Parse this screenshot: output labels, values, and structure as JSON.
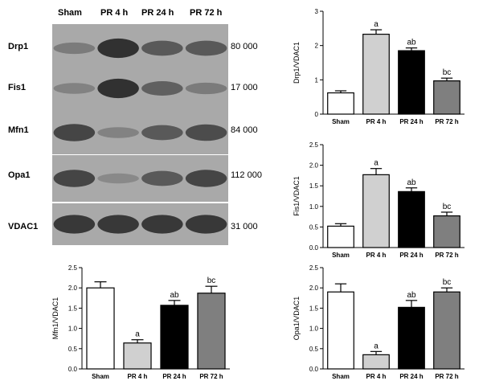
{
  "blot": {
    "lanes": [
      "Sham",
      "PR 4 h",
      "PR 24 h",
      "PR 72 h"
    ],
    "bands": [
      {
        "name": "Drp1",
        "mw": "80 000",
        "intensity": [
          0.35,
          0.9,
          0.6,
          0.6
        ]
      },
      {
        "name": "Fis1",
        "mw": "17 000",
        "intensity": [
          0.3,
          0.9,
          0.55,
          0.35
        ]
      },
      {
        "name": "Mfn1",
        "mw": "84 000",
        "intensity": [
          0.75,
          0.3,
          0.6,
          0.7
        ]
      },
      {
        "name": "Opa1",
        "mw": "112 000",
        "intensity": [
          0.75,
          0.25,
          0.6,
          0.75
        ]
      },
      {
        "name": "VDAC1",
        "mw": "31 000",
        "intensity": [
          0.85,
          0.85,
          0.85,
          0.85
        ]
      }
    ]
  },
  "chart_data": [
    {
      "id": "drp1",
      "type": "bar",
      "ylabel": "Drp1/VDAC1",
      "categories": [
        "Sham",
        "PR 4 h",
        "PR 24 h",
        "PR 72 h"
      ],
      "values": [
        0.62,
        2.33,
        1.85,
        0.97
      ],
      "errors": [
        0.06,
        0.13,
        0.08,
        0.08
      ],
      "annotations": [
        "",
        "a",
        "ab",
        "bc"
      ],
      "ylim": [
        0,
        3
      ],
      "yticks": [
        0,
        1,
        2,
        3
      ],
      "bar_colors": [
        "#ffffff",
        "#d0d0d0",
        "#000000",
        "#7f7f7f"
      ]
    },
    {
      "id": "fis1",
      "type": "bar",
      "ylabel": "Fis1/VDAC1",
      "categories": [
        "Sham",
        "PR 4 h",
        "PR 24 h",
        "PR 72 h"
      ],
      "values": [
        0.52,
        1.77,
        1.36,
        0.77
      ],
      "errors": [
        0.06,
        0.15,
        0.09,
        0.09
      ],
      "annotations": [
        "",
        "a",
        "ab",
        "bc"
      ],
      "ylim": [
        0,
        2.5
      ],
      "yticks": [
        0,
        0.5,
        1.0,
        1.5,
        2.0,
        2.5
      ],
      "bar_colors": [
        "#ffffff",
        "#d0d0d0",
        "#000000",
        "#7f7f7f"
      ]
    },
    {
      "id": "mfn1",
      "type": "bar",
      "ylabel": "Mfn1/VDAC1",
      "categories": [
        "Sham",
        "PR 4 h",
        "PR 24 h",
        "PR 72 h"
      ],
      "values": [
        2.0,
        0.64,
        1.57,
        1.87
      ],
      "errors": [
        0.15,
        0.08,
        0.12,
        0.17
      ],
      "annotations": [
        "",
        "a",
        "ab",
        "bc"
      ],
      "ylim": [
        0,
        2.5
      ],
      "yticks": [
        0,
        0.5,
        1.0,
        1.5,
        2.0,
        2.5
      ],
      "bar_colors": [
        "#ffffff",
        "#d0d0d0",
        "#000000",
        "#7f7f7f"
      ]
    },
    {
      "id": "opa1",
      "type": "bar",
      "ylabel": "Opa1/VDAC1",
      "categories": [
        "Sham",
        "PR 4 h",
        "PR 24 h",
        "PR 72 h"
      ],
      "values": [
        1.9,
        0.35,
        1.52,
        1.9
      ],
      "errors": [
        0.2,
        0.08,
        0.17,
        0.1
      ],
      "annotations": [
        "",
        "a",
        "ab",
        "bc"
      ],
      "ylim": [
        0,
        2.5
      ],
      "yticks": [
        0,
        0.5,
        1.0,
        1.5,
        2.0,
        2.5
      ],
      "bar_colors": [
        "#ffffff",
        "#d0d0d0",
        "#000000",
        "#7f7f7f"
      ]
    }
  ]
}
